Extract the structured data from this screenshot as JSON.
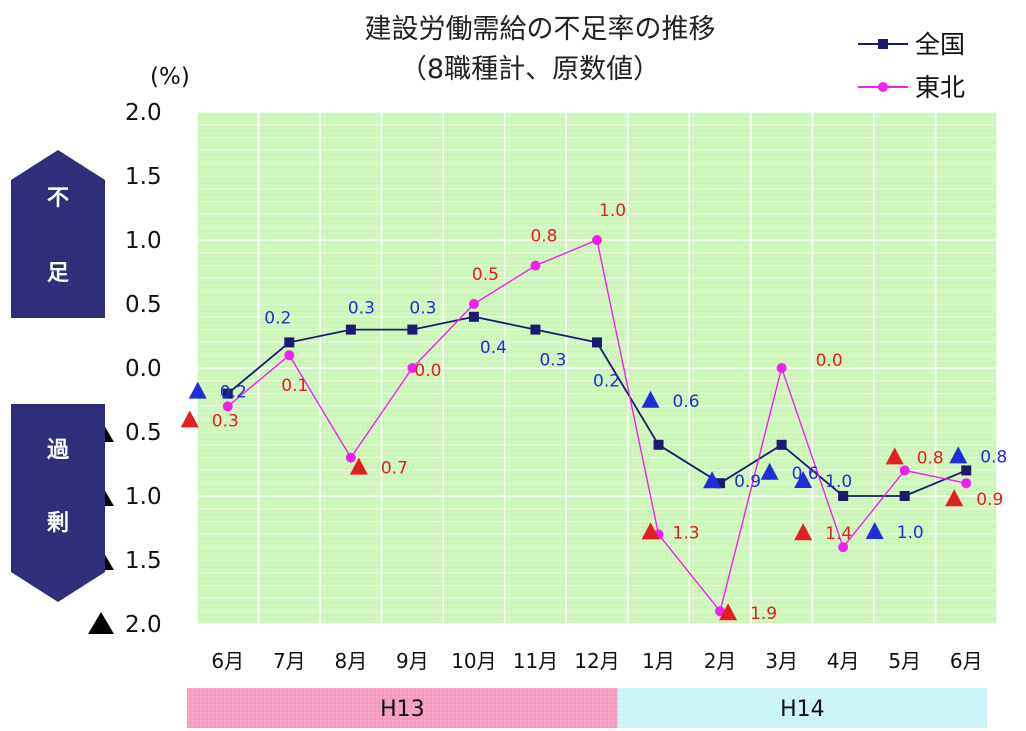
{
  "chart_data": {
    "type": "line",
    "title": "建設労働需給の不足率の推移",
    "subtitle": "（8職種計、原数値）",
    "ylabel": "(%)",
    "ylim": [
      -2.0,
      2.0
    ],
    "grid": true,
    "legend_position": "top-right",
    "categories": [
      "6月",
      "7月",
      "8月",
      "9月",
      "10月",
      "11月",
      "12月",
      "1月",
      "2月",
      "3月",
      "4月",
      "5月",
      "6月"
    ],
    "y_ticks": [
      {
        "value": 2.0,
        "label": "2.0",
        "negative": false
      },
      {
        "value": 1.5,
        "label": "1.5",
        "negative": false
      },
      {
        "value": 1.0,
        "label": "1.0",
        "negative": false
      },
      {
        "value": 0.5,
        "label": "0.5",
        "negative": false
      },
      {
        "value": 0.0,
        "label": "0.0",
        "negative": false
      },
      {
        "value": -0.5,
        "label": "0.5",
        "negative": true
      },
      {
        "value": -1.0,
        "label": "1.0",
        "negative": true
      },
      {
        "value": -1.5,
        "label": "1.5",
        "negative": true
      },
      {
        "value": -2.0,
        "label": "2.0",
        "negative": true
      }
    ],
    "series": [
      {
        "name": "全国",
        "color": "#1a1a6e",
        "marker": "square",
        "label_color": "#1f2fd6",
        "values": [
          -0.2,
          0.2,
          0.3,
          0.3,
          0.4,
          0.3,
          0.2,
          -0.6,
          -0.9,
          -0.6,
          -1.0,
          -1.0,
          -0.8
        ],
        "labels": [
          "0.2",
          "0.2",
          "0.3",
          "0.3",
          "0.4",
          "0.3",
          "0.2",
          "0.6",
          "0.9",
          "0.6",
          "1.0",
          "1.0",
          "0.8"
        ]
      },
      {
        "name": "東北",
        "color": "#ee22ee",
        "marker": "circle",
        "label_color": "#e02020",
        "values": [
          -0.3,
          0.1,
          -0.7,
          0.0,
          0.5,
          0.8,
          1.0,
          -1.3,
          -1.9,
          0.0,
          -1.4,
          -0.8,
          -0.9
        ],
        "labels": [
          "0.3",
          "0.1",
          "0.7",
          "0.0",
          "0.5",
          "0.8",
          "1.0",
          "1.3",
          "1.9",
          "0.0",
          "1.4",
          "0.8",
          "0.9"
        ]
      }
    ],
    "side_labels": {
      "shortage": "不足",
      "surplus": "過剰"
    },
    "eras": [
      {
        "label": "H13",
        "from_index": 0,
        "to_index": 6,
        "color": "#f59ac0"
      },
      {
        "label": "H14",
        "from_index": 7,
        "to_index": 12,
        "color": "#c8f4f8"
      }
    ],
    "colors": {
      "plot_background": "#ccf5b8",
      "gridline": "#ffffff",
      "side_arrow": "#2e2e7a",
      "negative_marker": "#000000",
      "label_negative_blue": "#1f2fd6",
      "label_negative_red": "#e02020"
    }
  }
}
